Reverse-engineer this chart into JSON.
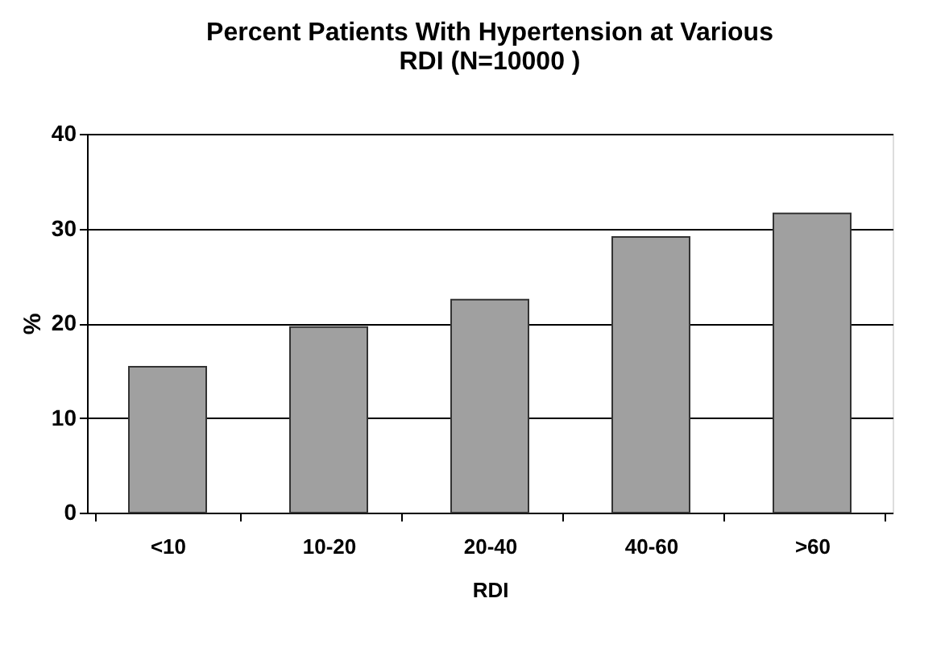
{
  "chart_data": {
    "type": "bar",
    "title": [
      "Percent Patients With Hypertension at Various",
      "RDI (N=10000 )"
    ],
    "xlabel": "RDI",
    "ylabel": "%",
    "categories": [
      "<10",
      "10-20",
      "20-40",
      "40-60",
      ">60"
    ],
    "values": [
      15.4,
      19.6,
      22.5,
      29.1,
      31.6
    ],
    "color": "#a0a0a0",
    "ylim": [
      0,
      40
    ],
    "yticks": [
      0,
      10,
      20,
      30,
      40
    ],
    "grid": "y"
  }
}
